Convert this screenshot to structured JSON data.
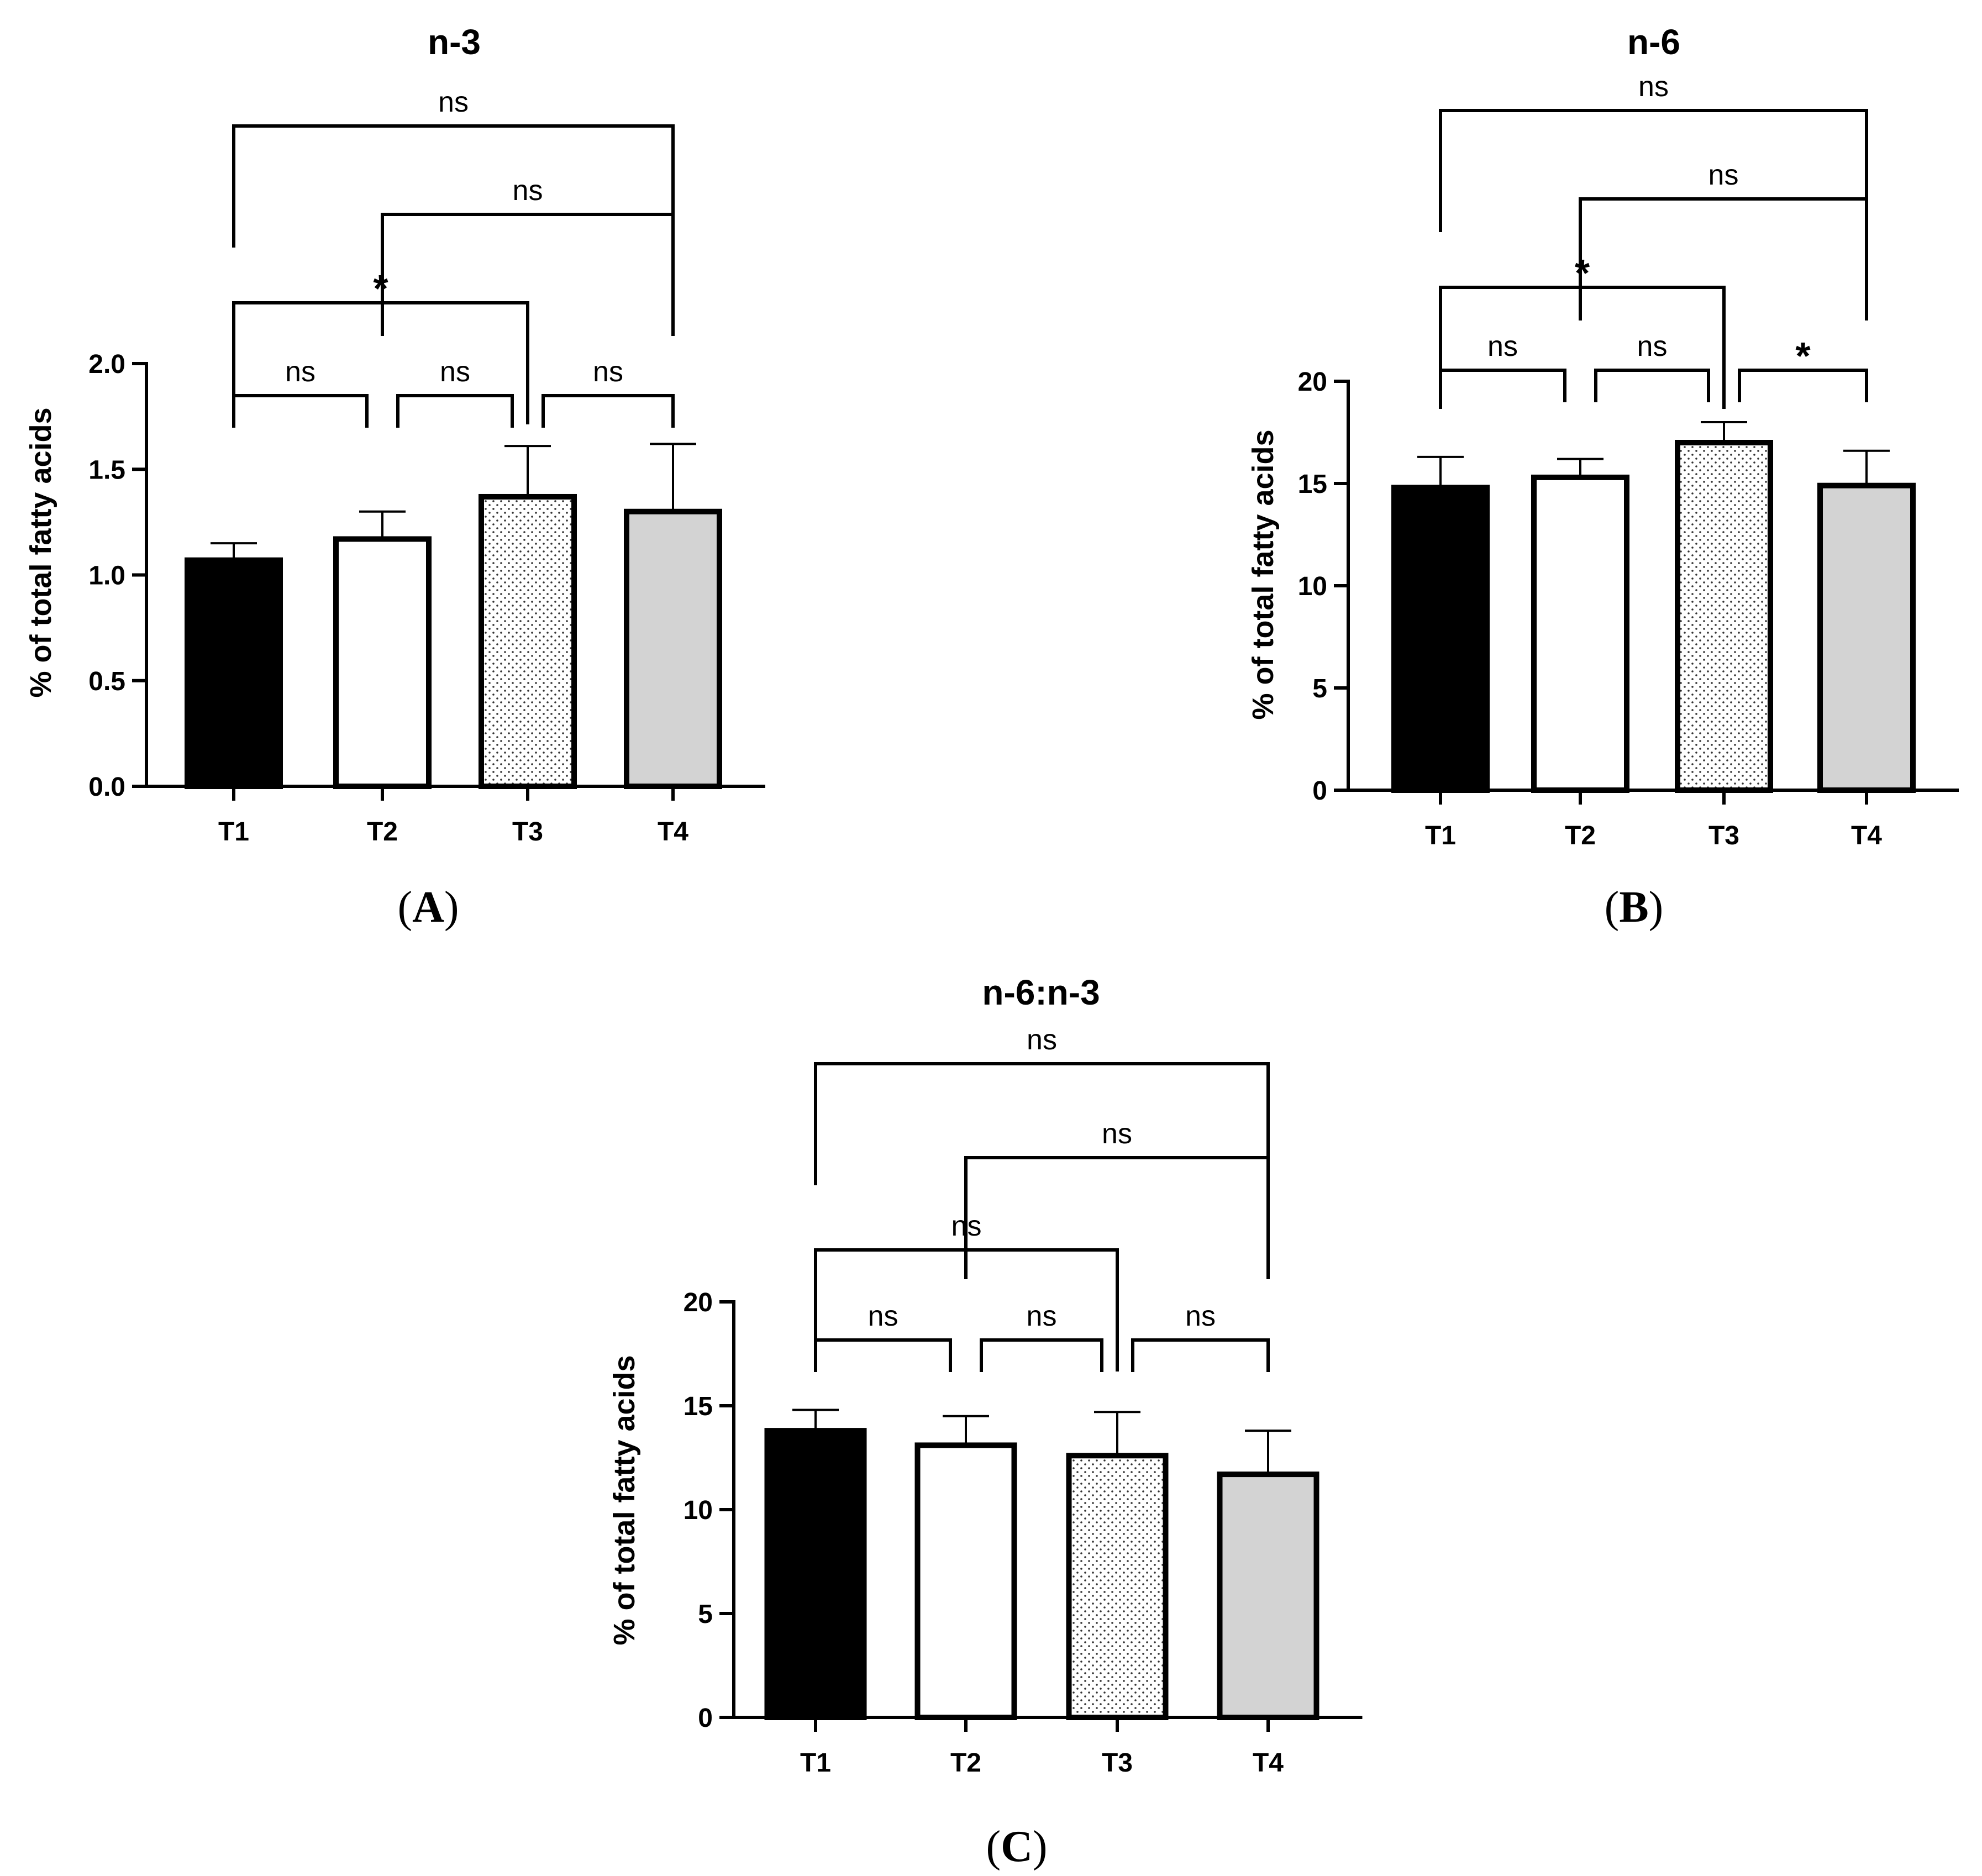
{
  "chart_data": [
    {
      "panel_label": "A",
      "type": "bar",
      "title": "n-3",
      "ylabel": "% of total fatty acids",
      "xlabel": "",
      "categories": [
        "T1",
        "T2",
        "T3",
        "T4"
      ],
      "values": [
        1.07,
        1.17,
        1.37,
        1.3
      ],
      "errors": [
        0.08,
        0.13,
        0.24,
        0.32
      ],
      "ylim": [
        0,
        2.0
      ],
      "yticks": [
        0.0,
        0.5,
        1.0,
        1.5,
        2.0
      ],
      "ytick_labels": [
        "0.0",
        "0.5",
        "1.0",
        "1.5",
        "2.0"
      ],
      "fills": [
        "#000000",
        "#ffffff",
        "dotted",
        "#d3d3d3"
      ],
      "comparisons": [
        {
          "from": 0,
          "to": 1,
          "label": "ns"
        },
        {
          "from": 1,
          "to": 2,
          "label": "ns"
        },
        {
          "from": 2,
          "to": 3,
          "label": "ns"
        },
        {
          "from": 0,
          "to": 2,
          "label": "*"
        },
        {
          "from": 1,
          "to": 3,
          "label": "ns"
        },
        {
          "from": 0,
          "to": 3,
          "label": "ns"
        }
      ]
    },
    {
      "panel_label": "B",
      "type": "bar",
      "title": "n-6",
      "ylabel": "% of total fatty acids",
      "xlabel": "",
      "categories": [
        "T1",
        "T2",
        "T3",
        "T4"
      ],
      "values": [
        14.8,
        15.3,
        17.0,
        14.9
      ],
      "errors": [
        1.5,
        0.9,
        1.0,
        1.7
      ],
      "ylim": [
        0,
        20
      ],
      "yticks": [
        0,
        5,
        10,
        15,
        20
      ],
      "ytick_labels": [
        "0",
        "5",
        "10",
        "15",
        "20"
      ],
      "fills": [
        "#000000",
        "#ffffff",
        "dotted",
        "#d3d3d3"
      ],
      "comparisons": [
        {
          "from": 0,
          "to": 1,
          "label": "ns"
        },
        {
          "from": 1,
          "to": 2,
          "label": "ns"
        },
        {
          "from": 2,
          "to": 3,
          "label": "*"
        },
        {
          "from": 0,
          "to": 2,
          "label": "*"
        },
        {
          "from": 1,
          "to": 3,
          "label": "ns"
        },
        {
          "from": 0,
          "to": 3,
          "label": "ns"
        }
      ]
    },
    {
      "panel_label": "C",
      "type": "bar",
      "title": "n-6:n-3",
      "ylabel": "% of total fatty acids",
      "xlabel": "",
      "categories": [
        "T1",
        "T2",
        "T3",
        "T4"
      ],
      "values": [
        13.8,
        13.1,
        12.6,
        11.7
      ],
      "errors": [
        1.0,
        1.4,
        2.1,
        2.1
      ],
      "ylim": [
        0,
        20
      ],
      "yticks": [
        0,
        5,
        10,
        15,
        20
      ],
      "ytick_labels": [
        "0",
        "5",
        "10",
        "15",
        "20"
      ],
      "fills": [
        "#000000",
        "#ffffff",
        "dotted",
        "#d3d3d3"
      ],
      "comparisons": [
        {
          "from": 0,
          "to": 1,
          "label": "ns"
        },
        {
          "from": 1,
          "to": 2,
          "label": "ns"
        },
        {
          "from": 2,
          "to": 3,
          "label": "ns"
        },
        {
          "from": 0,
          "to": 2,
          "label": "ns"
        },
        {
          "from": 1,
          "to": 3,
          "label": "ns"
        },
        {
          "from": 0,
          "to": 3,
          "label": "ns"
        }
      ]
    }
  ]
}
